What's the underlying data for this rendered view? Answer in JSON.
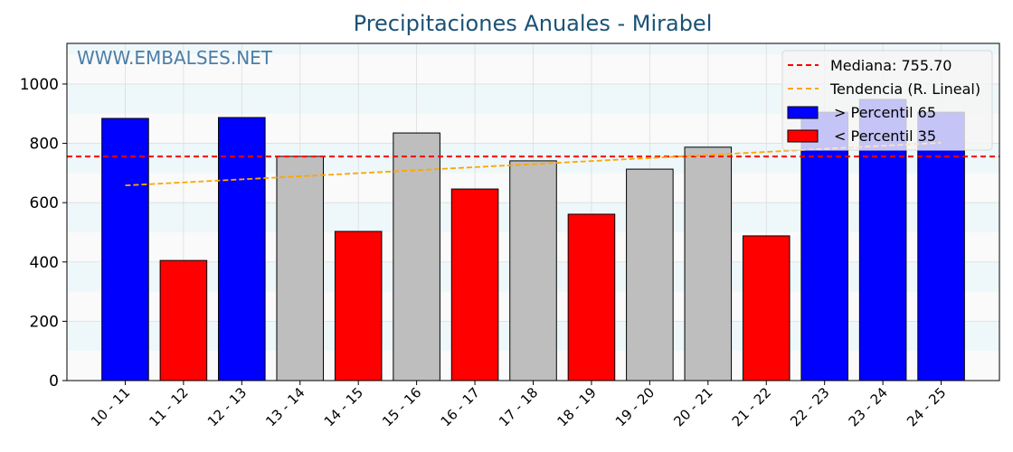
{
  "chart_data": {
    "type": "bar",
    "title": "Precipitaciones Anuales - Mirabel",
    "watermark": "WWW.EMBALSES.NET",
    "xlabel": "",
    "ylabel": "",
    "ylim": [
      0,
      1137
    ],
    "yticks": [
      0,
      200,
      400,
      600,
      800,
      1000
    ],
    "grid": true,
    "legend_position": "top-right",
    "categories": [
      "10 - 11",
      "11 - 12",
      "12 - 13",
      "13 - 14",
      "14 - 15",
      "15 - 16",
      "16 - 17",
      "17 - 18",
      "18 - 19",
      "19 - 20",
      "20 - 21",
      "21 - 22",
      "22 - 23",
      "23 - 24",
      "24 - 25"
    ],
    "values": [
      884,
      405,
      887,
      756,
      503,
      835,
      646,
      741,
      561,
      713,
      787,
      488,
      905,
      948,
      905
    ],
    "bar_classes": [
      "high",
      "low",
      "high",
      "mid",
      "low",
      "mid",
      "low",
      "mid",
      "low",
      "mid",
      "mid",
      "low",
      "high",
      "high",
      "high"
    ],
    "median": 755.7,
    "trend": {
      "start": 658,
      "end": 802
    },
    "legend": [
      {
        "label": "Mediana: 755.70",
        "kind": "median"
      },
      {
        "label": "Tendencia (R. Lineal)",
        "kind": "trend"
      },
      {
        "label": "> Percentil 65",
        "kind": "high"
      },
      {
        "label": "< Percentil 35",
        "kind": "low"
      }
    ],
    "colors": {
      "high": "#0000ff",
      "low": "#ff0000",
      "mid": "#bebebe",
      "median": "#ff0000",
      "trend": "#ffa500",
      "title": "#1a5276",
      "watermark": "#4a7ea8",
      "band": "#eef7f9",
      "band_alt": "#fafafa"
    }
  }
}
